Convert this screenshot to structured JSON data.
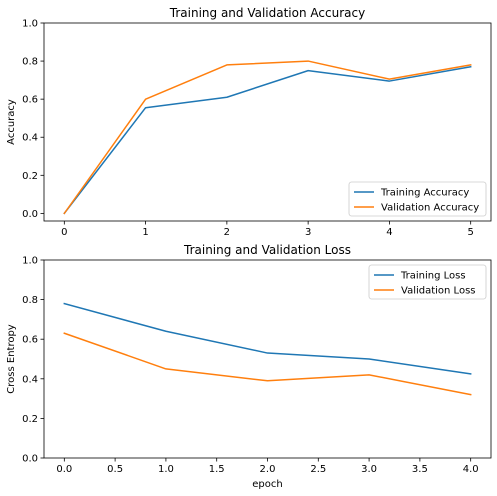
{
  "chart_data": [
    {
      "type": "line",
      "title": "Training and Validation Accuracy",
      "xlabel": "",
      "ylabel": "Accuracy",
      "xlim": [
        -0.25,
        5.25
      ],
      "ylim": [
        -0.04,
        1.0
      ],
      "xticks": [
        0,
        1,
        2,
        3,
        4,
        5
      ],
      "xtick_labels": [
        "0",
        "1",
        "2",
        "3",
        "4",
        "5"
      ],
      "yticks": [
        0.0,
        0.2,
        0.4,
        0.6,
        0.8,
        1.0
      ],
      "ytick_labels": [
        "0.0",
        "0.2",
        "0.4",
        "0.6",
        "0.8",
        "1.0"
      ],
      "grid": false,
      "legend_position": "lower right",
      "x": [
        0,
        1,
        2,
        3,
        4,
        5
      ],
      "series": [
        {
          "name": "Training Accuracy",
          "color": "#1f77b4",
          "values": [
            0.0,
            0.555,
            0.61,
            0.75,
            0.695,
            0.77
          ]
        },
        {
          "name": "Validation Accuracy",
          "color": "#ff7f0e",
          "values": [
            0.0,
            0.6,
            0.78,
            0.8,
            0.705,
            0.78
          ]
        }
      ]
    },
    {
      "type": "line",
      "title": "Training and Validation Loss",
      "xlabel": "epoch",
      "ylabel": "Cross Entropy",
      "xlim": [
        -0.2,
        4.2
      ],
      "ylim": [
        0.0,
        1.0
      ],
      "xticks": [
        0,
        0.5,
        1,
        1.5,
        2,
        2.5,
        3,
        3.5,
        4
      ],
      "xtick_labels": [
        "0.0",
        "0.5",
        "1.0",
        "1.5",
        "2.0",
        "2.5",
        "3.0",
        "3.5",
        "4.0"
      ],
      "yticks": [
        0.0,
        0.2,
        0.4,
        0.6,
        0.8,
        1.0
      ],
      "ytick_labels": [
        "0.0",
        "0.2",
        "0.4",
        "0.6",
        "0.8",
        "1.0"
      ],
      "grid": false,
      "legend_position": "upper right",
      "x": [
        0,
        1,
        2,
        3,
        4
      ],
      "series": [
        {
          "name": "Training Loss",
          "color": "#1f77b4",
          "values": [
            0.78,
            0.64,
            0.53,
            0.5,
            0.425
          ]
        },
        {
          "name": "Validation Loss",
          "color": "#ff7f0e",
          "values": [
            0.63,
            0.45,
            0.39,
            0.42,
            0.32
          ]
        }
      ]
    }
  ]
}
